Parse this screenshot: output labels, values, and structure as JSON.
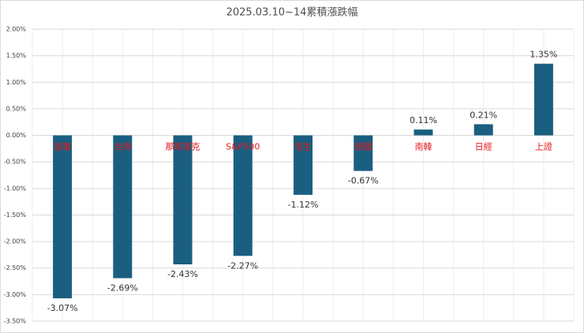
{
  "chart_data": {
    "type": "bar",
    "title": "2025.03.10~14累積漲跌幅",
    "categories": [
      "道瓊",
      "台灣",
      "那斯達克",
      "S&P500",
      "恆生",
      "德國",
      "南韓",
      "日經",
      "上證"
    ],
    "values": [
      -3.07,
      -2.69,
      -2.43,
      -2.27,
      -1.12,
      -0.67,
      0.11,
      0.21,
      1.35
    ],
    "value_labels": [
      "-3.07%",
      "-2.69%",
      "-2.43%",
      "-2.27%",
      "-1.12%",
      "-0.67%",
      "0.11%",
      "0.21%",
      "1.35%"
    ],
    "color": "#1a5f80",
    "category_color": "#e8161b",
    "ylim": [
      -3.5,
      2
    ],
    "yticks": [
      {
        "value": -3.5,
        "label": "-3.50%"
      },
      {
        "value": -3,
        "label": "-3.00%"
      },
      {
        "value": -2.5,
        "label": "-2.50%"
      },
      {
        "value": -2,
        "label": "-2.00%"
      },
      {
        "value": -1.5,
        "label": "-1.50%"
      },
      {
        "value": -1,
        "label": "-1.00%"
      },
      {
        "value": -0.5,
        "label": "-0.50%"
      },
      {
        "value": 0,
        "label": "0.00%"
      },
      {
        "value": 0.5,
        "label": "0.50%"
      },
      {
        "value": 1,
        "label": "1.00%"
      },
      {
        "value": 1.5,
        "label": "1.50%"
      },
      {
        "value": 2,
        "label": "2.00%"
      }
    ],
    "grid": true
  }
}
